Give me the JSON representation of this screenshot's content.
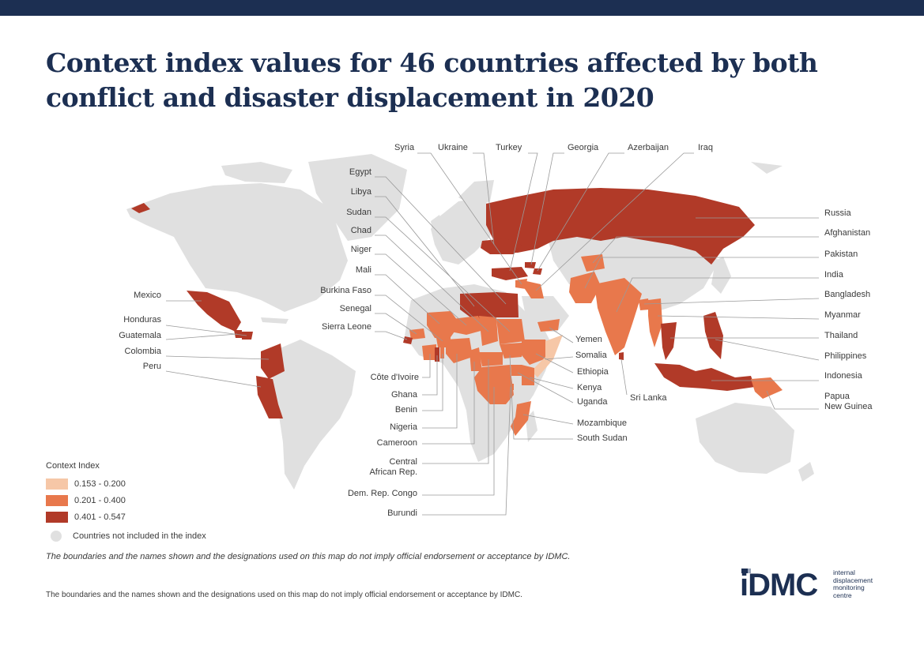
{
  "title": "Context index values for 46 countries affected by both conflict and disaster displacement in 2020",
  "colors": {
    "header_bar": "#1c2f52",
    "land": "#e0e0e0",
    "bin1": "#f6c7a7",
    "bin2": "#e8784c",
    "bin3": "#b13a28",
    "leader": "#9a9a9a"
  },
  "legend": {
    "title": "Context Index",
    "items": [
      {
        "label": "0.153 - 0.200",
        "color": "#f6c7a7"
      },
      {
        "label": "0.201 - 0.400",
        "color": "#e8784c"
      },
      {
        "label": "0.401 - 0.547",
        "color": "#b13a28"
      }
    ],
    "not_included": "Countries not included in the index"
  },
  "labels": {
    "syria": "Syria",
    "ukraine": "Ukraine",
    "turkey": "Turkey",
    "georgia": "Georgia",
    "azerbaijan": "Azerbaijan",
    "iraq": "Iraq",
    "egypt": "Egypt",
    "libya": "Libya",
    "sudan": "Sudan",
    "chad": "Chad",
    "niger": "Niger",
    "mali": "Mali",
    "burkina_faso": "Burkina Faso",
    "senegal": "Senegal",
    "sierra_leone": "Sierra Leone",
    "mexico": "Mexico",
    "honduras": "Honduras",
    "guatemala": "Guatemala",
    "colombia": "Colombia",
    "peru": "Peru",
    "russia": "Russia",
    "afghanistan": "Afghanistan",
    "pakistan": "Pakistan",
    "india": "India",
    "bangladesh": "Bangladesh",
    "myanmar": "Myanmar",
    "thailand": "Thailand",
    "philippines": "Philippines",
    "indonesia": "Indonesia",
    "papua_new_guinea": "Papua\nNew Guinea",
    "yemen": "Yemen",
    "somalia": "Somalia",
    "ethiopia": "Ethiopia",
    "kenya": "Kenya",
    "uganda": "Uganda",
    "sri_lanka": "Sri Lanka",
    "mozambique": "Mozambique",
    "south_sudan": "South Sudan",
    "cote_divoire": "Côte d'Ivoire",
    "ghana": "Ghana",
    "benin": "Benin",
    "nigeria": "Nigeria",
    "cameroon": "Cameroon",
    "car": "Central\nAfrican Rep.",
    "drc": "Dem. Rep. Congo",
    "burundi": "Burundi"
  },
  "disclaimer_italic": "The boundaries and the names shown and the designations used on this map do not imply official endorsement or acceptance by IDMC.",
  "disclaimer": "The boundaries and the names shown and the designations used on this map do not imply official endorsement or acceptance by IDMC.",
  "logo": {
    "mark": "iDMC",
    "line1": "internal",
    "line2": "displacement",
    "line3": "monitoring",
    "line4": "centre"
  }
}
